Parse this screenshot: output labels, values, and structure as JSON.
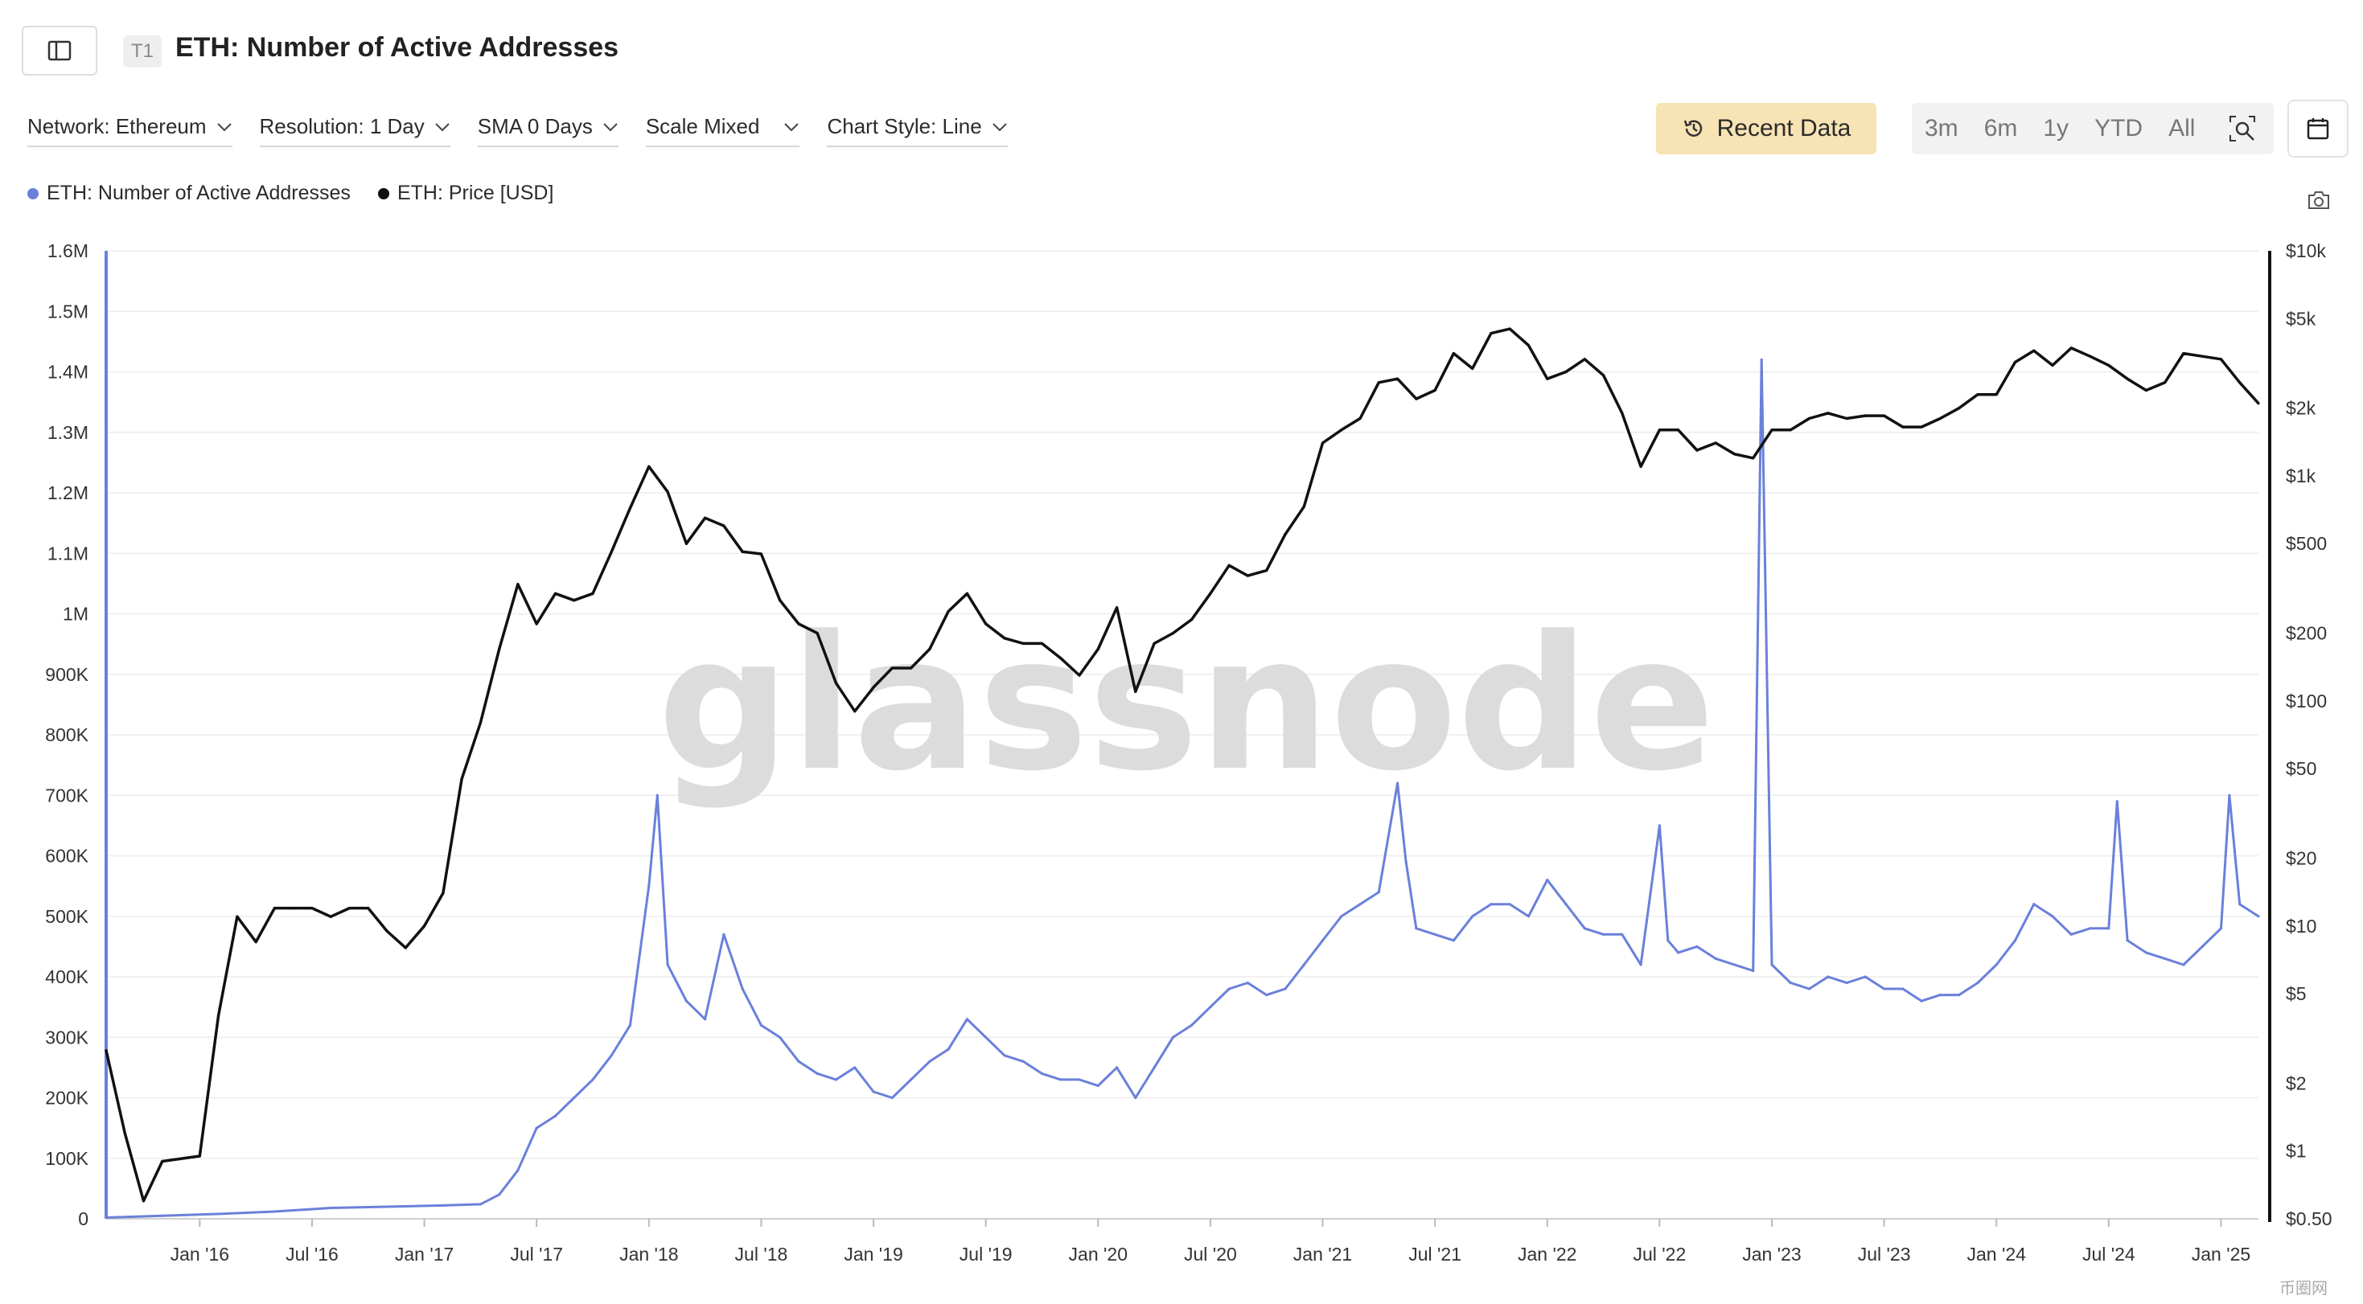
{
  "header": {
    "tag": "T1",
    "title": "ETH: Number of Active Addresses"
  },
  "filters": [
    {
      "label": "Network: Ethereum"
    },
    {
      "label": "Resolution: 1 Day"
    },
    {
      "label": "SMA 0 Days"
    },
    {
      "label": "Scale Mixed"
    },
    {
      "label": "Chart Style: Line"
    }
  ],
  "toolbar": {
    "recent_label": "Recent Data",
    "ranges": [
      "3m",
      "6m",
      "1y",
      "YTD",
      "All"
    ]
  },
  "legend": [
    {
      "label": "ETH: Number of Active Addresses",
      "color": "#6a80db"
    },
    {
      "label": "ETH: Price [USD]",
      "color": "#111111"
    }
  ],
  "watermark": "glassnode",
  "footer_logo": "币圈网",
  "colors": {
    "accent": "#f7e3b4",
    "addresses": "#6a80db",
    "price": "#111111"
  },
  "chart_data": {
    "type": "line",
    "x_ticks": [
      "Jan '16",
      "Jul '16",
      "Jan '17",
      "Jul '17",
      "Jan '18",
      "Jul '18",
      "Jan '19",
      "Jul '19",
      "Jan '20",
      "Jul '20",
      "Jan '21",
      "Jul '21",
      "Jan '22",
      "Jul '22",
      "Jan '23",
      "Jul '23",
      "Jan '24",
      "Jul '24",
      "Jan '25"
    ],
    "x_range": [
      "2015-08",
      "2025-03"
    ],
    "left_axis": {
      "ticks": [
        "0",
        "100K",
        "200K",
        "300K",
        "400K",
        "500K",
        "600K",
        "700K",
        "800K",
        "900K",
        "1M",
        "1.1M",
        "1.2M",
        "1.3M",
        "1.4M",
        "1.5M",
        "1.6M"
      ],
      "range": [
        0,
        1600000
      ],
      "scale": "linear"
    },
    "right_axis": {
      "ticks": [
        "$0.50",
        "$1",
        "$2",
        "$5",
        "$10",
        "$20",
        "$50",
        "$100",
        "$200",
        "$500",
        "$1k",
        "$2k",
        "$5k",
        "$10k"
      ],
      "values": [
        0.5,
        1,
        2,
        5,
        10,
        20,
        50,
        100,
        200,
        500,
        1000,
        2000,
        5000,
        10000
      ],
      "range": [
        0.5,
        10000
      ],
      "scale": "log"
    },
    "grid": true,
    "legend_position": "top-left",
    "series": [
      {
        "name": "ETH: Number of Active Addresses",
        "axis": "left",
        "x": [
          "2015-08",
          "2015-11",
          "2016-02",
          "2016-05",
          "2016-08",
          "2016-11",
          "2017-02",
          "2017-04",
          "2017-05",
          "2017-06",
          "2017-07",
          "2017-08",
          "2017-09",
          "2017-10",
          "2017-11",
          "2017-12",
          "2018-01",
          "2018-01",
          "2018-02",
          "2018-03",
          "2018-04",
          "2018-05",
          "2018-06",
          "2018-07",
          "2018-08",
          "2018-09",
          "2018-10",
          "2018-11",
          "2018-12",
          "2019-01",
          "2019-02",
          "2019-03",
          "2019-04",
          "2019-05",
          "2019-06",
          "2019-07",
          "2019-08",
          "2019-09",
          "2019-10",
          "2019-11",
          "2019-12",
          "2020-01",
          "2020-02",
          "2020-03",
          "2020-04",
          "2020-05",
          "2020-06",
          "2020-07",
          "2020-08",
          "2020-09",
          "2020-10",
          "2020-11",
          "2020-12",
          "2021-01",
          "2021-02",
          "2021-03",
          "2021-04",
          "2021-05",
          "2021-05",
          "2021-06",
          "2021-07",
          "2021-08",
          "2021-09",
          "2021-10",
          "2021-11",
          "2021-12",
          "2022-01",
          "2022-02",
          "2022-03",
          "2022-04",
          "2022-05",
          "2022-06",
          "2022-07",
          "2022-07",
          "2022-08",
          "2022-09",
          "2022-10",
          "2022-11",
          "2022-12",
          "2022-12",
          "2023-01",
          "2023-02",
          "2023-03",
          "2023-04",
          "2023-05",
          "2023-06",
          "2023-07",
          "2023-08",
          "2023-09",
          "2023-10",
          "2023-11",
          "2023-12",
          "2024-01",
          "2024-02",
          "2024-03",
          "2024-04",
          "2024-05",
          "2024-06",
          "2024-07",
          "2024-07",
          "2024-08",
          "2024-09",
          "2024-10",
          "2024-11",
          "2024-12",
          "2025-01",
          "2025-01",
          "2025-02",
          "2025-03"
        ],
        "values": [
          2000,
          5000,
          8000,
          12000,
          18000,
          20000,
          22000,
          24000,
          40000,
          80000,
          150000,
          170000,
          200000,
          230000,
          270000,
          320000,
          550000,
          700000,
          420000,
          360000,
          330000,
          470000,
          380000,
          320000,
          300000,
          260000,
          240000,
          230000,
          250000,
          210000,
          200000,
          230000,
          260000,
          280000,
          330000,
          300000,
          270000,
          260000,
          240000,
          230000,
          230000,
          220000,
          250000,
          200000,
          250000,
          300000,
          320000,
          350000,
          380000,
          390000,
          370000,
          380000,
          420000,
          460000,
          500000,
          520000,
          540000,
          720000,
          590000,
          480000,
          470000,
          460000,
          500000,
          520000,
          520000,
          500000,
          560000,
          520000,
          480000,
          470000,
          470000,
          420000,
          650000,
          460000,
          440000,
          450000,
          430000,
          420000,
          410000,
          1420000,
          420000,
          390000,
          380000,
          400000,
          390000,
          400000,
          380000,
          380000,
          360000,
          370000,
          370000,
          390000,
          420000,
          460000,
          520000,
          500000,
          470000,
          480000,
          480000,
          690000,
          460000,
          440000,
          430000,
          420000,
          450000,
          480000,
          700000,
          520000,
          500000
        ]
      },
      {
        "name": "ETH: Price [USD]",
        "axis": "right",
        "x": [
          "2015-08",
          "2015-09",
          "2015-10",
          "2015-11",
          "2016-01",
          "2016-02",
          "2016-03",
          "2016-04",
          "2016-05",
          "2016-06",
          "2016-07",
          "2016-08",
          "2016-09",
          "2016-10",
          "2016-11",
          "2016-12",
          "2017-01",
          "2017-02",
          "2017-03",
          "2017-04",
          "2017-05",
          "2017-06",
          "2017-07",
          "2017-08",
          "2017-09",
          "2017-10",
          "2017-11",
          "2017-12",
          "2018-01",
          "2018-02",
          "2018-03",
          "2018-04",
          "2018-05",
          "2018-06",
          "2018-07",
          "2018-08",
          "2018-09",
          "2018-10",
          "2018-11",
          "2018-12",
          "2019-01",
          "2019-02",
          "2019-03",
          "2019-04",
          "2019-05",
          "2019-06",
          "2019-07",
          "2019-08",
          "2019-09",
          "2019-10",
          "2019-11",
          "2019-12",
          "2020-01",
          "2020-02",
          "2020-03",
          "2020-04",
          "2020-05",
          "2020-06",
          "2020-07",
          "2020-08",
          "2020-09",
          "2020-10",
          "2020-11",
          "2020-12",
          "2021-01",
          "2021-02",
          "2021-03",
          "2021-04",
          "2021-05",
          "2021-06",
          "2021-07",
          "2021-08",
          "2021-09",
          "2021-10",
          "2021-11",
          "2021-12",
          "2022-01",
          "2022-02",
          "2022-03",
          "2022-04",
          "2022-05",
          "2022-06",
          "2022-07",
          "2022-08",
          "2022-09",
          "2022-10",
          "2022-11",
          "2022-12",
          "2023-01",
          "2023-02",
          "2023-03",
          "2023-04",
          "2023-05",
          "2023-06",
          "2023-07",
          "2023-08",
          "2023-09",
          "2023-10",
          "2023-11",
          "2023-12",
          "2024-01",
          "2024-02",
          "2024-03",
          "2024-04",
          "2024-05",
          "2024-06",
          "2024-07",
          "2024-08",
          "2024-09",
          "2024-10",
          "2024-11",
          "2024-12",
          "2025-01",
          "2025-02",
          "2025-03"
        ],
        "values": [
          2.8,
          1.2,
          0.6,
          0.9,
          0.95,
          4,
          11,
          8.5,
          12,
          12,
          12,
          11,
          12,
          12,
          9.5,
          8,
          10,
          14,
          45,
          80,
          170,
          330,
          220,
          300,
          280,
          300,
          460,
          720,
          1100,
          850,
          500,
          650,
          600,
          460,
          450,
          280,
          220,
          200,
          120,
          90,
          115,
          140,
          140,
          170,
          250,
          300,
          220,
          190,
          180,
          180,
          155,
          130,
          170,
          260,
          110,
          180,
          200,
          230,
          300,
          400,
          360,
          380,
          550,
          730,
          1400,
          1600,
          1800,
          2600,
          2700,
          2200,
          2400,
          3500,
          3000,
          4300,
          4500,
          3800,
          2700,
          2900,
          3300,
          2800,
          1900,
          1100,
          1600,
          1600,
          1300,
          1400,
          1250,
          1200,
          1600,
          1600,
          1800,
          1900,
          1800,
          1850,
          1850,
          1650,
          1650,
          1800,
          2000,
          2300,
          2300,
          3200,
          3600,
          3100,
          3700,
          3400,
          3100,
          2700,
          2400,
          2600,
          3500,
          3400,
          3300,
          2600,
          2100
        ]
      }
    ]
  }
}
